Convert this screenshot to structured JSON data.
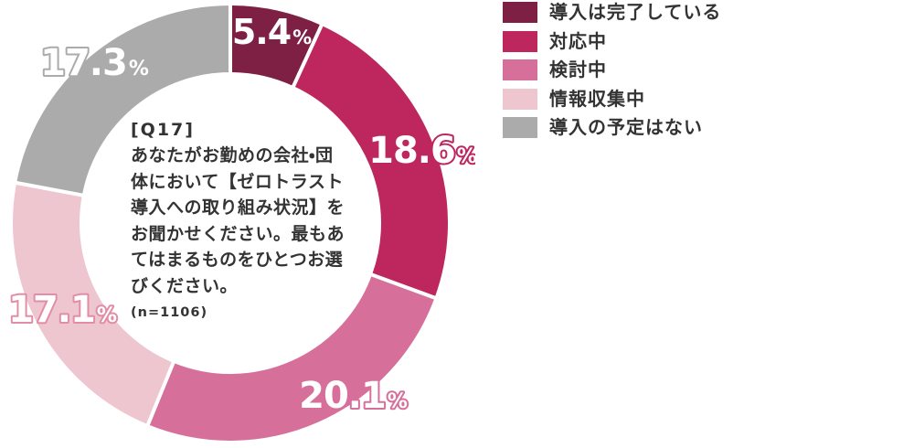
{
  "page": {
    "background": "#ffffff",
    "text_color": "#333333"
  },
  "chart_data": {
    "type": "pie",
    "subtype": "donut",
    "categories": [
      "導入は完了している",
      "対応中",
      "検討中",
      "情報収集中",
      "導入の予定はない"
    ],
    "values": [
      5.4,
      18.6,
      20.1,
      17.1,
      17.3
    ],
    "unit": "%",
    "colors": [
      "#7d2044",
      "#be265e",
      "#d76f9b",
      "#edc6d0",
      "#ababab"
    ],
    "value_label_text_color": "#ffffff",
    "value_label_outline_colors": [
      "none",
      "#be265e",
      "#d76f9b",
      "#e28ca6",
      "#ababab"
    ],
    "segment_gap_color": "#ffffff",
    "legend_position": "top-right",
    "center_text": {
      "title": "[Q17]",
      "lines": [
        "あなたがお勤めの会社・団",
        "体において【ゼロトラスト",
        "導入への取り組み状況】を",
        "お聞かせください。最もあ",
        "てはまるものをひとつお選",
        "びください。"
      ],
      "sample": "(n=1106)"
    }
  }
}
